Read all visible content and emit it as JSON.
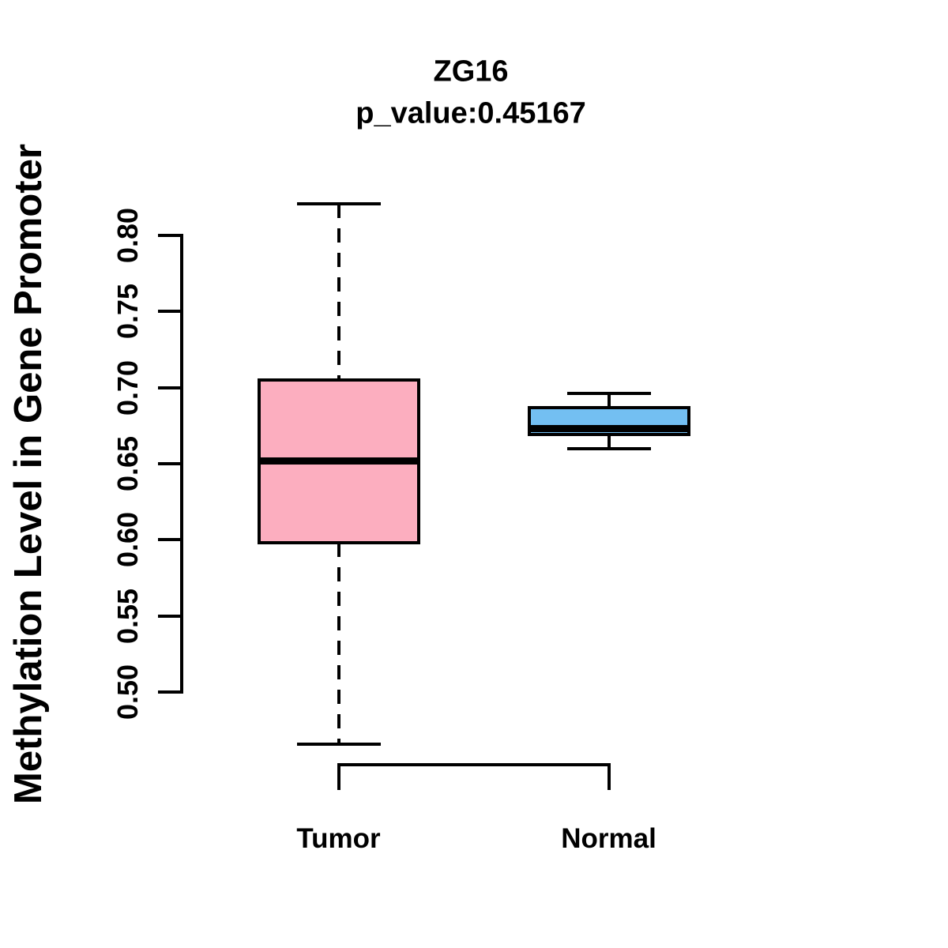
{
  "figure": {
    "title": "ZG16",
    "subtitle": "p_value:0.45167",
    "p_value": "0.45167",
    "gene": "ZG16"
  },
  "chart_data": {
    "type": "boxplot",
    "title": "ZG16",
    "subtitle": "p_value:0.45167",
    "ylabel": "Methylation Level in Gene Promoter",
    "xlabel": "",
    "ylim": [
      0.5,
      0.8
    ],
    "yticks": [
      0.5,
      0.55,
      0.6,
      0.65,
      0.7,
      0.75,
      0.8
    ],
    "ytick_labels": [
      "0.50",
      "0.55",
      "0.60",
      "0.65",
      "0.70",
      "0.75",
      "0.80"
    ],
    "categories": [
      "Tumor",
      "Normal"
    ],
    "grid": false,
    "legend": "none",
    "whisker_style": "dashed",
    "series": [
      {
        "name": "Tumor",
        "color": "#FCAEBF",
        "whisker_low": 0.466,
        "q1": 0.598,
        "median": 0.652,
        "q3": 0.705,
        "whisker_high": 0.821,
        "outliers": []
      },
      {
        "name": "Normal",
        "color": "#73BFF2",
        "whisker_low": 0.66,
        "q1": 0.669,
        "median": 0.673,
        "q3": 0.687,
        "whisker_high": 0.696,
        "outliers": []
      }
    ],
    "colors": {
      "box_border": "#000000",
      "median_line": "#000000",
      "axis": "#000000",
      "text": "#000000",
      "background": "#FFFFFF"
    }
  }
}
